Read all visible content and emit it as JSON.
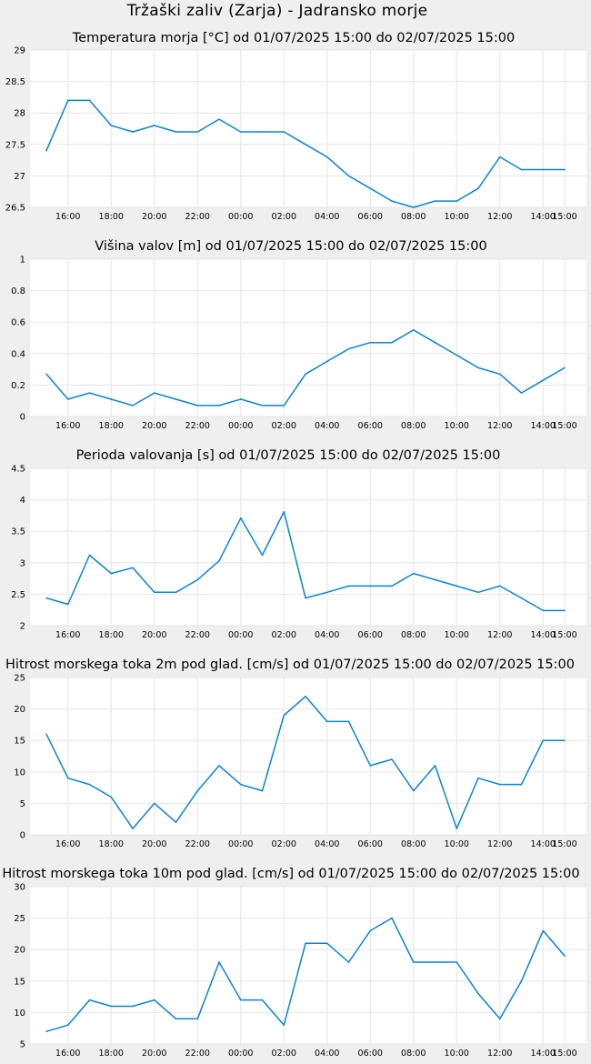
{
  "page_title": "Tržaški zaliv (Zarja) - Jadransko morje",
  "colors": {
    "line": "#0a84d6",
    "background": "#efefef",
    "plot": "#ffffff",
    "grid": "#e6e6e6"
  },
  "chart_data": [
    {
      "type": "line",
      "title": "Temperatura morja [°C] od 01/07/2025 15:00 do 02/07/2025 15:00",
      "categories": [
        "15:00",
        "16:00",
        "17:00",
        "18:00",
        "19:00",
        "20:00",
        "21:00",
        "22:00",
        "23:00",
        "00:00",
        "01:00",
        "02:00",
        "03:00",
        "04:00",
        "05:00",
        "06:00",
        "07:00",
        "08:00",
        "09:00",
        "10:00",
        "11:00",
        "12:00",
        "13:00",
        "14:00",
        "15:00"
      ],
      "x_tick_labels": [
        "16:00",
        "18:00",
        "20:00",
        "22:00",
        "00:00",
        "02:00",
        "04:00",
        "06:00",
        "08:00",
        "10:00",
        "12:00",
        "14:00",
        "15:00"
      ],
      "ylim": [
        26.5,
        29
      ],
      "y_ticks": [
        "26.5",
        "27",
        "27.5",
        "28",
        "28.5",
        "29"
      ],
      "grid": true,
      "values": [
        27.4,
        28.2,
        28.2,
        27.8,
        27.7,
        27.8,
        27.7,
        27.7,
        27.9,
        27.7,
        27.7,
        27.7,
        27.5,
        27.3,
        27.0,
        26.8,
        26.6,
        26.5,
        26.6,
        26.6,
        26.8,
        27.3,
        27.1,
        27.1,
        27.1
      ]
    },
    {
      "type": "line",
      "title": "Višina valov [m] od 01/07/2025 15:00 do 02/07/2025 15:00",
      "categories": [
        "15:00",
        "16:00",
        "17:00",
        "18:00",
        "19:00",
        "20:00",
        "21:00",
        "22:00",
        "23:00",
        "00:00",
        "01:00",
        "02:00",
        "03:00",
        "04:00",
        "05:00",
        "06:00",
        "07:00",
        "08:00",
        "09:00",
        "10:00",
        "11:00",
        "12:00",
        "13:00",
        "14:00",
        "15:00"
      ],
      "x_tick_labels": [
        "16:00",
        "18:00",
        "20:00",
        "22:00",
        "00:00",
        "02:00",
        "04:00",
        "06:00",
        "08:00",
        "10:00",
        "12:00",
        "14:00",
        "15:00"
      ],
      "ylim": [
        0,
        1
      ],
      "y_ticks": [
        "0",
        "0.2",
        "0.4",
        "0.6",
        "0.8",
        "1"
      ],
      "grid": true,
      "values": [
        0.27,
        0.11,
        0.15,
        0.11,
        0.07,
        0.15,
        0.11,
        0.07,
        0.07,
        0.11,
        0.07,
        0.07,
        0.27,
        0.35,
        0.43,
        0.47,
        0.47,
        0.55,
        0.47,
        0.39,
        0.31,
        0.27,
        0.15,
        0.23,
        0.31
      ]
    },
    {
      "type": "line",
      "title": "Perioda valovanja [s] od 01/07/2025 15:00 do 02/07/2025 15:00",
      "categories": [
        "15:00",
        "16:00",
        "17:00",
        "18:00",
        "19:00",
        "20:00",
        "21:00",
        "22:00",
        "23:00",
        "00:00",
        "01:00",
        "02:00",
        "03:00",
        "04:00",
        "05:00",
        "06:00",
        "07:00",
        "08:00",
        "09:00",
        "10:00",
        "11:00",
        "12:00",
        "13:00",
        "14:00",
        "15:00"
      ],
      "x_tick_labels": [
        "16:00",
        "18:00",
        "20:00",
        "22:00",
        "00:00",
        "02:00",
        "04:00",
        "06:00",
        "08:00",
        "10:00",
        "12:00",
        "14:00",
        "15:00"
      ],
      "ylim": [
        2,
        4.5
      ],
      "y_ticks": [
        "2",
        "2.5",
        "3",
        "3.5",
        "4",
        "4.5"
      ],
      "grid": true,
      "values": [
        2.44,
        2.34,
        3.12,
        2.83,
        2.92,
        2.53,
        2.53,
        2.73,
        3.03,
        3.71,
        3.12,
        3.81,
        2.44,
        2.53,
        2.63,
        2.63,
        2.63,
        2.83,
        2.73,
        2.63,
        2.53,
        2.63,
        2.44,
        2.24,
        2.24
      ]
    },
    {
      "type": "line",
      "title": "Hitrost morskega toka 2m pod glad. [cm/s] od 01/07/2025 15:00 do 02/07/2025 15:00",
      "categories": [
        "15:00",
        "16:00",
        "17:00",
        "18:00",
        "19:00",
        "20:00",
        "21:00",
        "22:00",
        "23:00",
        "00:00",
        "01:00",
        "02:00",
        "03:00",
        "04:00",
        "05:00",
        "06:00",
        "07:00",
        "08:00",
        "09:00",
        "10:00",
        "11:00",
        "12:00",
        "13:00",
        "14:00",
        "15:00"
      ],
      "x_tick_labels": [
        "16:00",
        "18:00",
        "20:00",
        "22:00",
        "00:00",
        "02:00",
        "04:00",
        "06:00",
        "08:00",
        "10:00",
        "12:00",
        "14:00",
        "15:00"
      ],
      "ylim": [
        0,
        25
      ],
      "y_ticks": [
        "0",
        "5",
        "10",
        "15",
        "20",
        "25"
      ],
      "grid": true,
      "values": [
        16,
        9,
        8,
        6,
        1,
        5,
        2,
        7,
        11,
        8,
        7,
        19,
        22,
        18,
        18,
        11,
        12,
        7,
        11,
        1,
        9,
        8,
        8,
        15,
        15
      ]
    },
    {
      "type": "line",
      "title": "Hitrost morskega toka 10m pod glad. [cm/s] od 01/07/2025 15:00 do 02/07/2025 15:00",
      "categories": [
        "15:00",
        "16:00",
        "17:00",
        "18:00",
        "19:00",
        "20:00",
        "21:00",
        "22:00",
        "23:00",
        "00:00",
        "01:00",
        "02:00",
        "03:00",
        "04:00",
        "05:00",
        "06:00",
        "07:00",
        "08:00",
        "09:00",
        "10:00",
        "11:00",
        "12:00",
        "13:00",
        "14:00",
        "15:00"
      ],
      "x_tick_labels": [
        "16:00",
        "18:00",
        "20:00",
        "22:00",
        "00:00",
        "02:00",
        "04:00",
        "06:00",
        "08:00",
        "10:00",
        "12:00",
        "14:00",
        "15:00"
      ],
      "ylim": [
        5,
        30
      ],
      "y_ticks": [
        "5",
        "10",
        "15",
        "20",
        "25",
        "30"
      ],
      "grid": true,
      "values": [
        7,
        8,
        12,
        11,
        11,
        12,
        9,
        9,
        18,
        12,
        12,
        8,
        21,
        21,
        18,
        23,
        25,
        18,
        18,
        18,
        13,
        9,
        15,
        23,
        19
      ]
    }
  ]
}
